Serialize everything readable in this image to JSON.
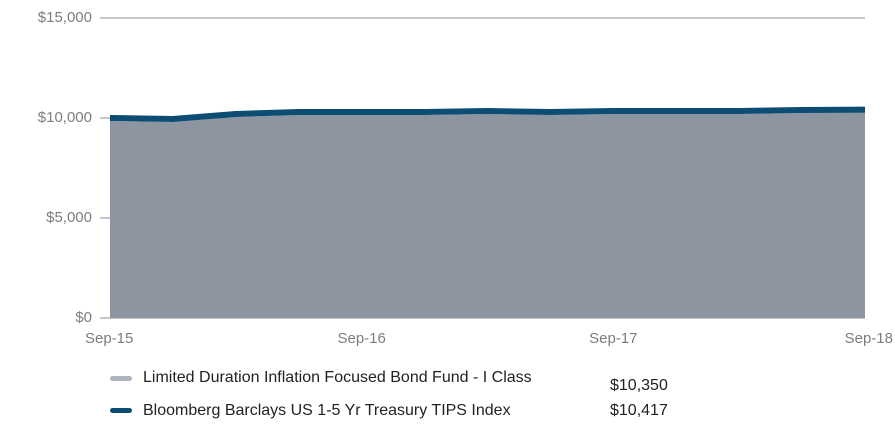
{
  "chart_data": {
    "type": "area",
    "categories": [
      "Sep-15",
      null,
      null,
      null,
      "Sep-16",
      null,
      null,
      null,
      "Sep-17",
      null,
      null,
      null,
      "Sep-18"
    ],
    "series": [
      {
        "name": "Limited Duration Inflation Focused Bond Fund - I Class",
        "color": "#8d96a0",
        "style": "area",
        "values": [
          9850,
          9800,
          10050,
          10150,
          10150,
          10150,
          10200,
          10150,
          10200,
          10200,
          10200,
          10250,
          10350
        ],
        "value_labels": [
          null,
          null,
          null,
          null,
          null,
          null,
          null,
          null,
          null,
          null,
          null,
          null,
          "$10,350"
        ]
      },
      {
        "name": "Bloomberg Barclays US 1-5 Yr Treasury TIPS Index",
        "color": "#0d4c73",
        "style": "line",
        "values": [
          10000,
          9950,
          10200,
          10300,
          10300,
          10300,
          10350,
          10300,
          10350,
          10350,
          10350,
          10400,
          10417
        ],
        "value_labels": [
          null,
          null,
          null,
          null,
          null,
          null,
          null,
          null,
          null,
          null,
          null,
          null,
          "$10,417"
        ]
      }
    ],
    "ylim": [
      0,
      15000
    ],
    "yticks": [
      {
        "value": 0,
        "label": "$0"
      },
      {
        "value": 5000,
        "label": "$5,000"
      },
      {
        "value": 10000,
        "label": "$10,000"
      },
      {
        "value": 15000,
        "label": "$15,000"
      }
    ],
    "grid": true
  }
}
